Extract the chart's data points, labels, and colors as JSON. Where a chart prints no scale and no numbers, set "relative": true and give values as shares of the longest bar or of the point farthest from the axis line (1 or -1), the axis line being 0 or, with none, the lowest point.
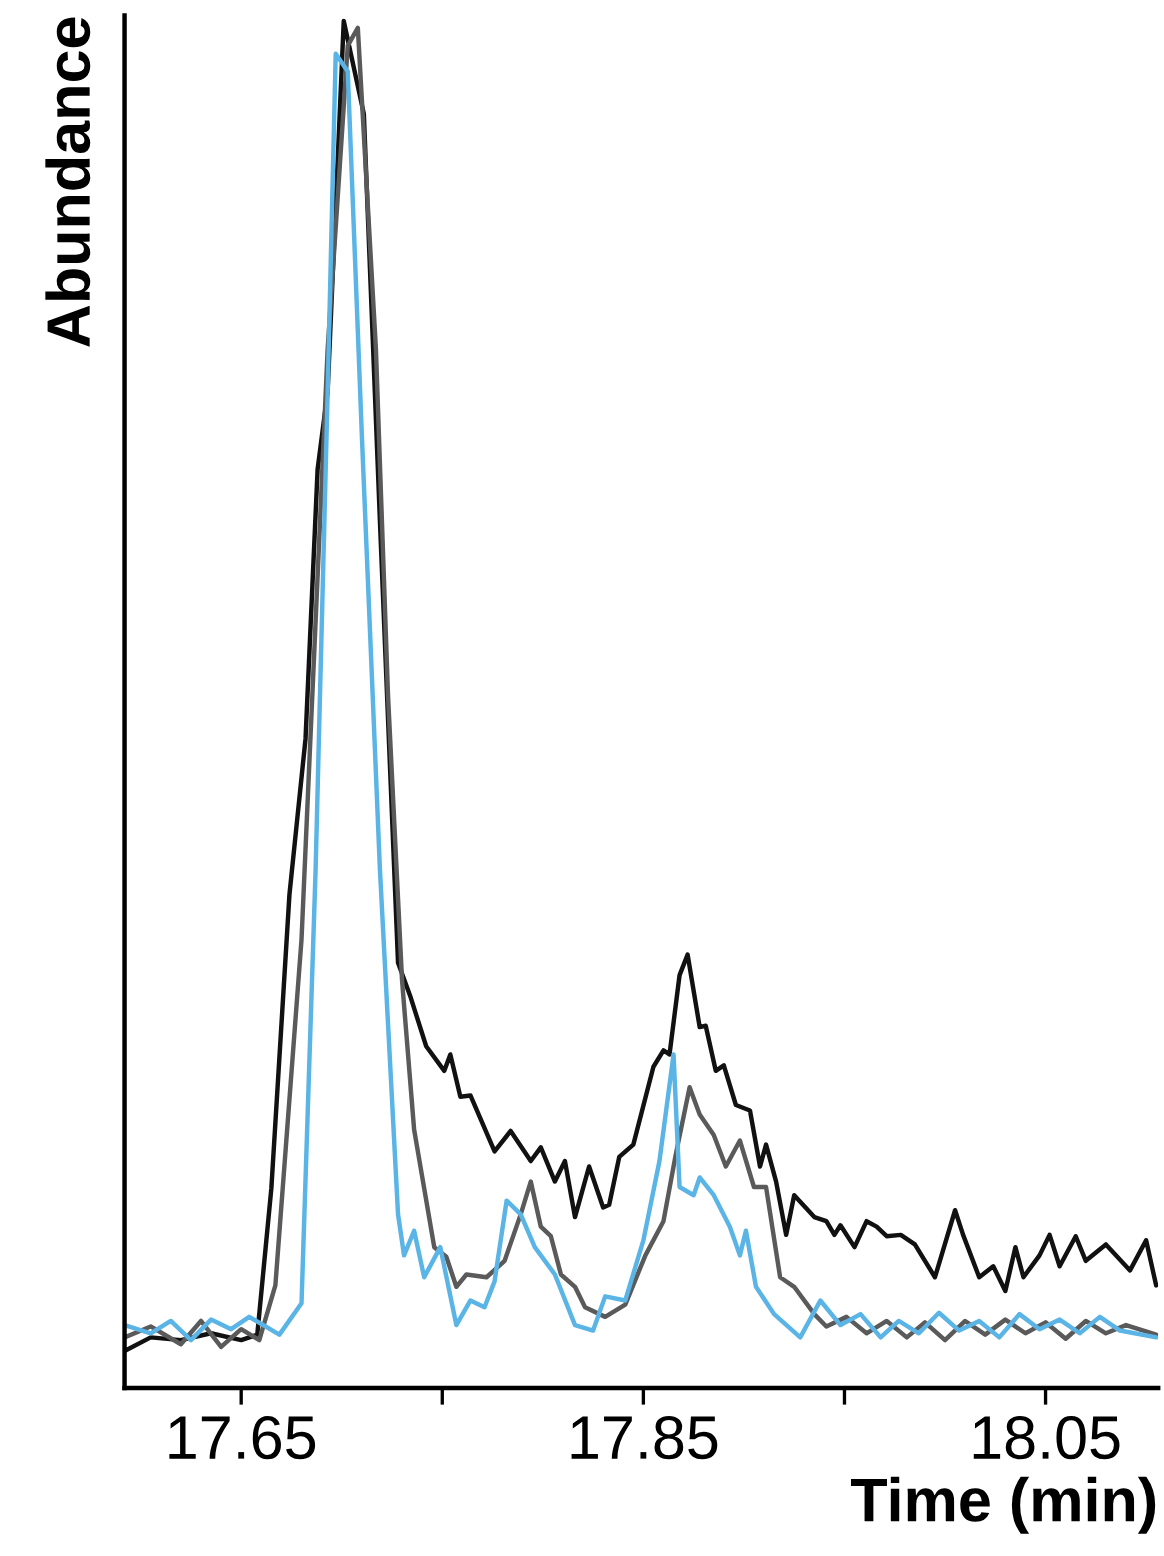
{
  "chart_data": {
    "type": "line",
    "relative": true,
    "xlabel": "Time (min)",
    "ylabel": "Abundance",
    "xlim": [
      17.592,
      18.106
    ],
    "xticks": [
      17.65,
      {
        "value": 17.75,
        "label": null
      },
      17.85,
      {
        "value": 17.95,
        "label": null
      },
      18.05
    ],
    "grid": false,
    "marker": "none",
    "line_style": "solid",
    "series": [
      {
        "color": "#111111",
        "x": [
          17.592,
          17.605,
          17.62,
          17.635,
          17.65,
          17.658,
          17.665,
          17.674,
          17.682,
          17.688,
          17.693,
          17.701,
          17.711,
          17.719,
          17.728,
          17.734,
          17.742,
          17.751,
          17.754,
          17.759,
          17.764,
          17.776,
          17.784,
          17.794,
          17.799,
          17.806,
          17.811,
          17.816,
          17.823,
          17.83,
          17.833,
          17.838,
          17.845,
          17.855,
          17.86,
          17.863,
          17.868,
          17.872,
          17.878,
          17.881,
          17.886,
          17.89,
          17.896,
          17.903,
          17.908,
          17.911,
          17.916,
          17.921,
          17.925,
          17.935,
          17.941,
          17.945,
          17.948,
          17.955,
          17.961,
          17.966,
          17.971,
          17.978,
          17.985,
          17.995,
          18.005,
          18.009,
          18.017,
          18.024,
          18.03,
          18.035,
          18.039,
          18.047,
          18.052,
          18.057,
          18.065,
          18.07,
          18.08,
          18.092,
          18.1,
          18.105
        ],
        "values": [
          0.027,
          0.037,
          0.035,
          0.04,
          0.035,
          0.039,
          0.146,
          0.361,
          0.475,
          0.672,
          0.729,
          1.0,
          0.932,
          0.634,
          0.311,
          0.287,
          0.25,
          0.232,
          0.244,
          0.213,
          0.214,
          0.173,
          0.188,
          0.166,
          0.176,
          0.151,
          0.166,
          0.125,
          0.162,
          0.132,
          0.134,
          0.169,
          0.178,
          0.235,
          0.247,
          0.244,
          0.302,
          0.317,
          0.264,
          0.265,
          0.232,
          0.236,
          0.207,
          0.203,
          0.162,
          0.178,
          0.151,
          0.112,
          0.141,
          0.125,
          0.122,
          0.112,
          0.119,
          0.103,
          0.122,
          0.118,
          0.111,
          0.112,
          0.105,
          0.081,
          0.13,
          0.112,
          0.081,
          0.089,
          0.071,
          0.103,
          0.081,
          0.097,
          0.112,
          0.089,
          0.111,
          0.093,
          0.105,
          0.086,
          0.108,
          0.075
        ]
      },
      {
        "color": "#5a5a5a",
        "x": [
          17.592,
          17.605,
          17.62,
          17.63,
          17.64,
          17.65,
          17.659,
          17.667,
          17.68,
          17.693,
          17.703,
          17.708,
          17.717,
          17.723,
          17.73,
          17.736,
          17.746,
          17.752,
          17.757,
          17.762,
          17.772,
          17.781,
          17.789,
          17.794,
          17.799,
          17.804,
          17.809,
          17.816,
          17.821,
          17.831,
          17.841,
          17.851,
          17.86,
          17.866,
          17.873,
          17.878,
          17.885,
          17.891,
          17.898,
          17.905,
          17.911,
          17.918,
          17.925,
          17.935,
          17.941,
          17.951,
          17.961,
          17.971,
          17.981,
          17.99,
          18.0,
          18.01,
          18.02,
          18.03,
          18.04,
          18.05,
          18.06,
          18.07,
          18.08,
          18.09,
          18.105
        ],
        "values": [
          0.037,
          0.045,
          0.032,
          0.049,
          0.03,
          0.043,
          0.035,
          0.075,
          0.328,
          0.76,
          0.982,
          0.995,
          0.76,
          0.507,
          0.298,
          0.189,
          0.103,
          0.096,
          0.074,
          0.083,
          0.081,
          0.093,
          0.127,
          0.151,
          0.118,
          0.111,
          0.083,
          0.074,
          0.059,
          0.052,
          0.061,
          0.097,
          0.122,
          0.17,
          0.22,
          0.2,
          0.185,
          0.162,
          0.181,
          0.147,
          0.147,
          0.081,
          0.074,
          0.054,
          0.045,
          0.052,
          0.04,
          0.049,
          0.037,
          0.048,
          0.035,
          0.049,
          0.039,
          0.05,
          0.04,
          0.048,
          0.036,
          0.049,
          0.04,
          0.046,
          0.039
        ]
      },
      {
        "color": "#5ab4e5",
        "x": [
          17.592,
          17.605,
          17.615,
          17.625,
          17.635,
          17.645,
          17.654,
          17.669,
          17.68,
          17.687,
          17.693,
          17.697,
          17.703,
          17.71,
          17.719,
          17.728,
          17.731,
          17.736,
          17.741,
          17.749,
          17.757,
          17.764,
          17.771,
          17.776,
          17.782,
          17.789,
          17.796,
          17.806,
          17.816,
          17.825,
          17.831,
          17.841,
          17.85,
          17.858,
          17.865,
          17.868,
          17.875,
          17.878,
          17.885,
          17.893,
          17.898,
          17.901,
          17.906,
          17.915,
          17.928,
          17.938,
          17.948,
          17.958,
          17.968,
          17.977,
          17.987,
          17.997,
          18.007,
          18.017,
          18.027,
          18.037,
          18.047,
          18.057,
          18.067,
          18.077,
          18.087,
          18.105
        ],
        "values": [
          0.046,
          0.04,
          0.049,
          0.035,
          0.05,
          0.043,
          0.052,
          0.039,
          0.062,
          0.379,
          0.729,
          0.976,
          0.963,
          0.697,
          0.379,
          0.127,
          0.097,
          0.115,
          0.081,
          0.103,
          0.046,
          0.064,
          0.059,
          0.078,
          0.137,
          0.127,
          0.103,
          0.083,
          0.046,
          0.042,
          0.067,
          0.064,
          0.108,
          0.166,
          0.244,
          0.147,
          0.141,
          0.154,
          0.141,
          0.118,
          0.097,
          0.115,
          0.074,
          0.054,
          0.037,
          0.064,
          0.046,
          0.054,
          0.037,
          0.049,
          0.04,
          0.055,
          0.042,
          0.049,
          0.037,
          0.054,
          0.043,
          0.05,
          0.04,
          0.052,
          0.042,
          0.037
        ]
      }
    ]
  }
}
